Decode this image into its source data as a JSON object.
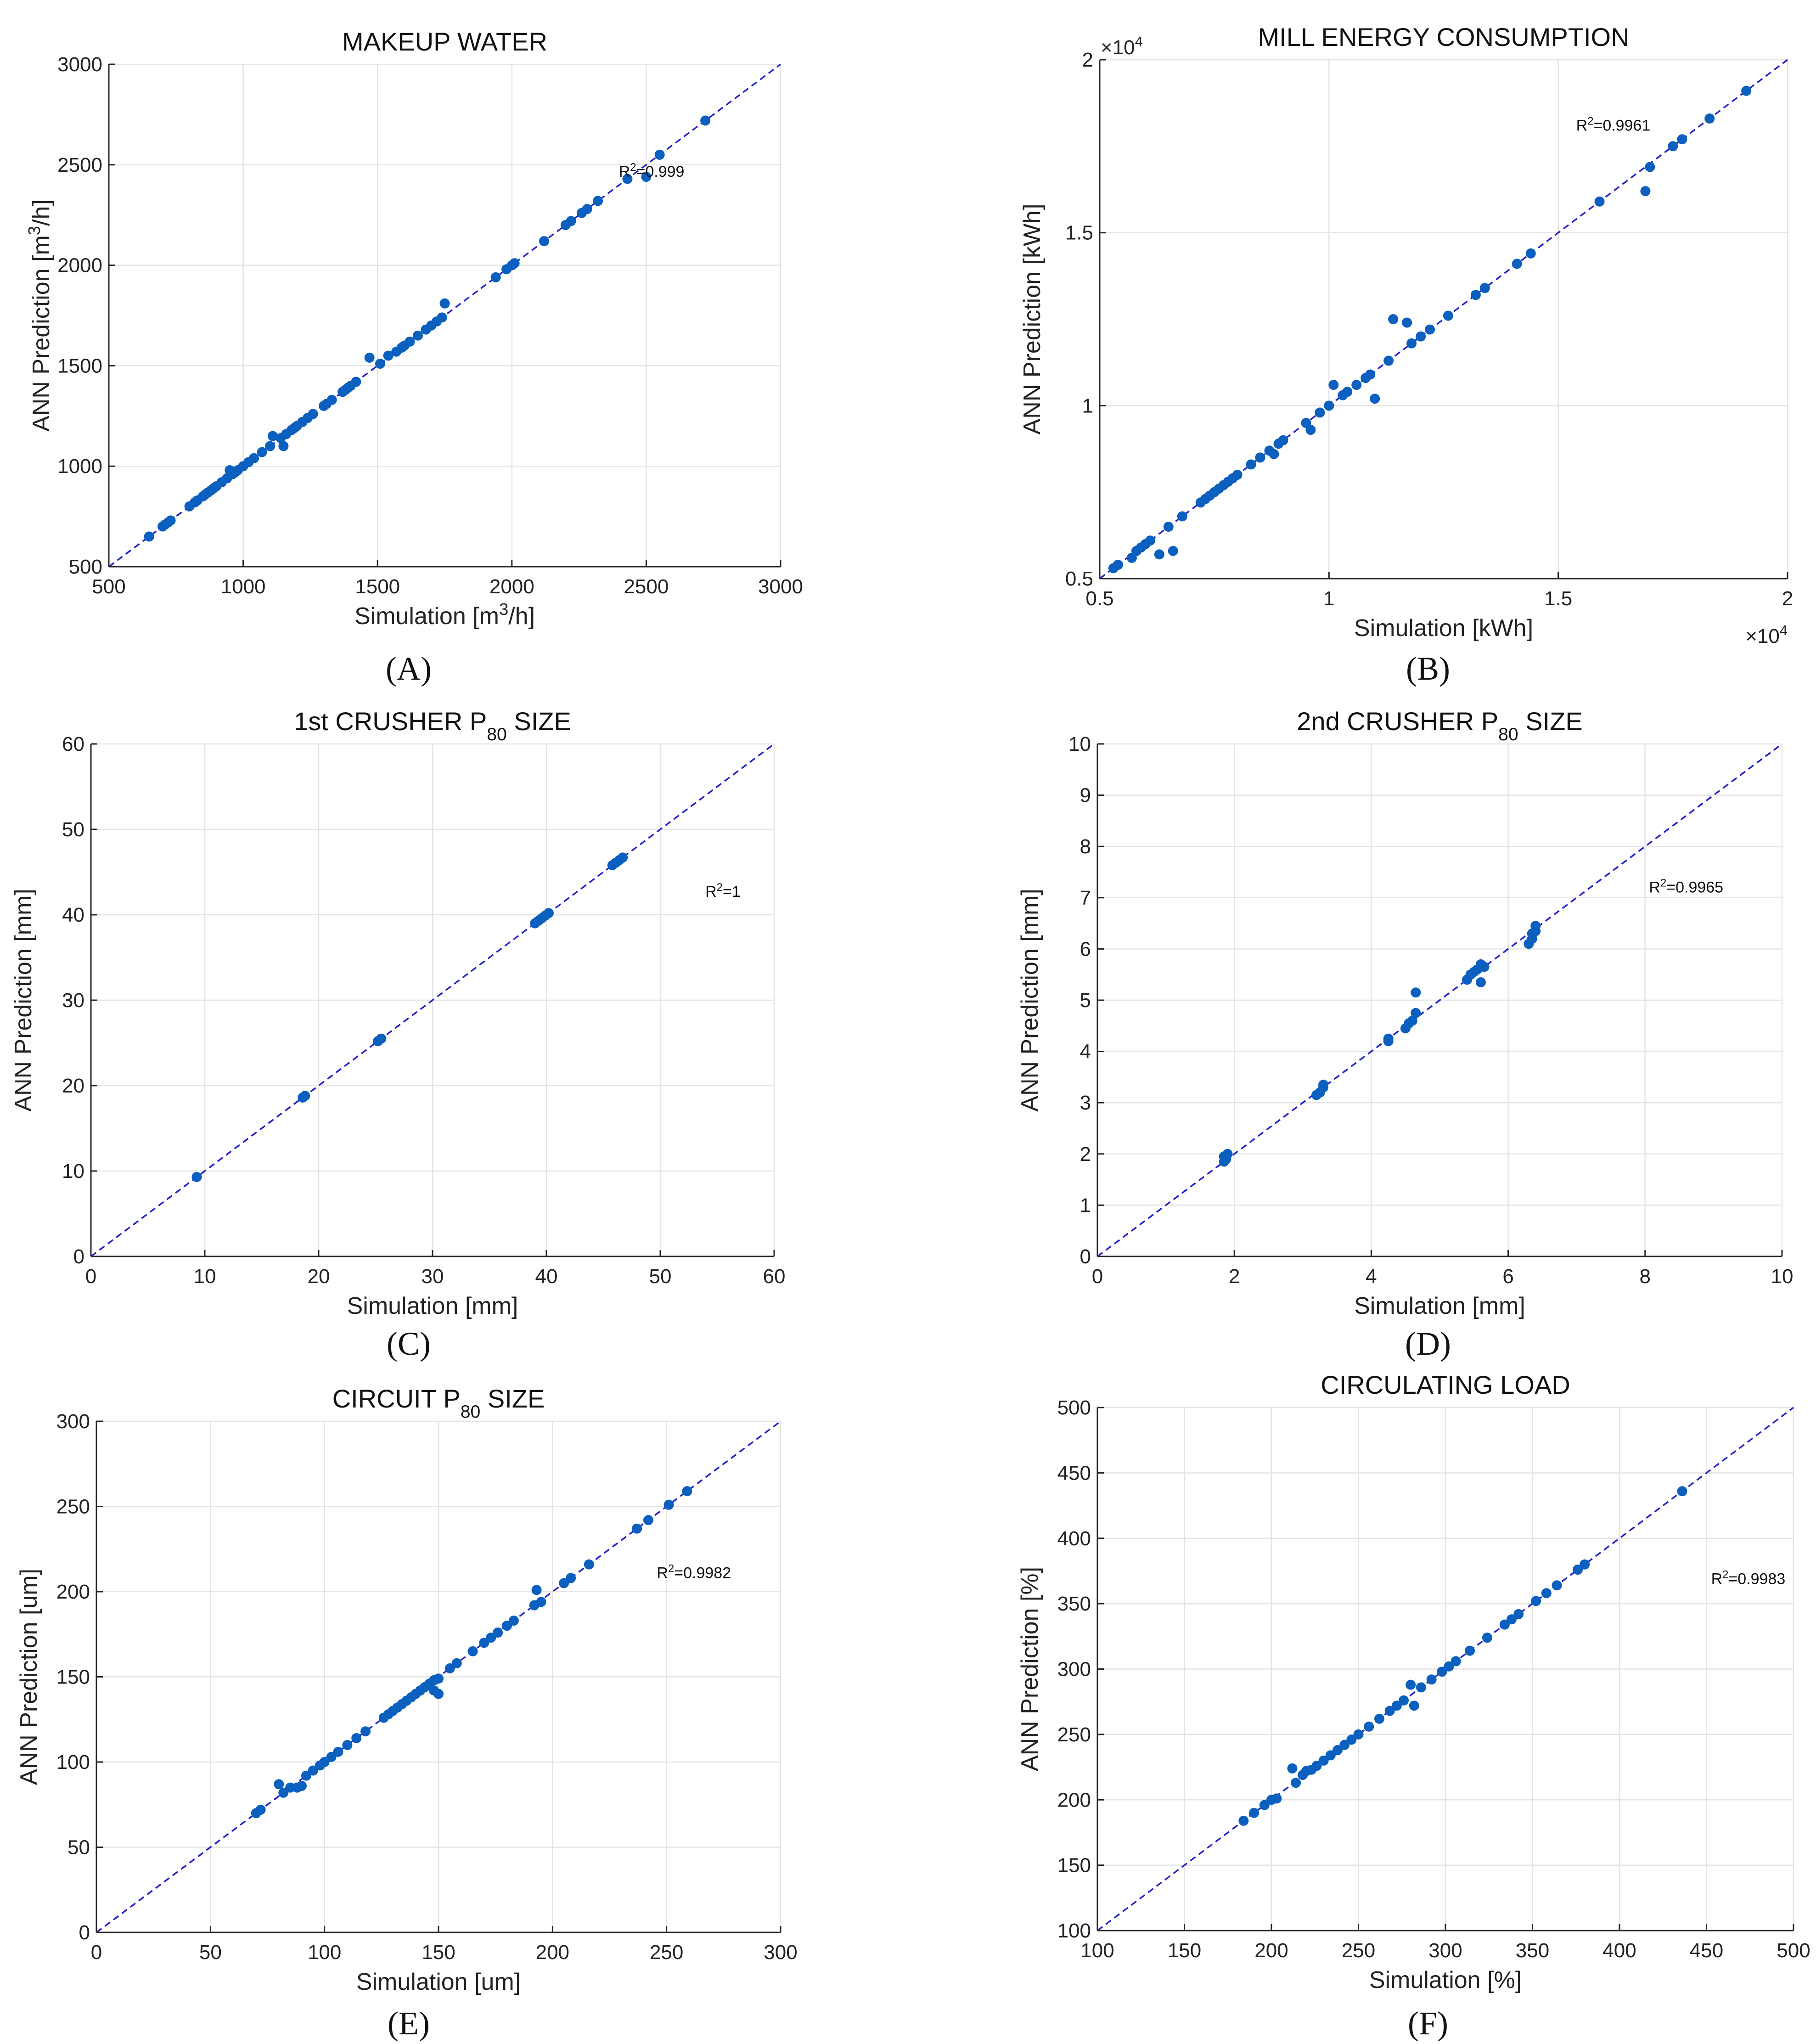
{
  "colors": {
    "marker": "#0a5fbf",
    "diagonal": "#2222cc",
    "grid": "#e4e4e4",
    "axis": "#262626"
  },
  "chart_data": [
    {
      "panel_label": "(A)",
      "type": "scatter",
      "title_parts": [
        {
          "text": "MAKEUP WATER"
        }
      ],
      "xlabel_parts": [
        {
          "text": "Simulation [m"
        },
        {
          "text": "3",
          "sup": true
        },
        {
          "text": "/h]"
        }
      ],
      "ylabel_parts": [
        {
          "text": "ANN Prediction [m"
        },
        {
          "text": "3",
          "sup": true
        },
        {
          "text": "/h]"
        }
      ],
      "r2_parts": [
        {
          "text": "R"
        },
        {
          "text": "2",
          "sup": true
        },
        {
          "text": "=0.999"
        }
      ],
      "r2_pos": [
        2520,
        2440
      ],
      "xlim": [
        500,
        3000
      ],
      "ylim": [
        500,
        3000
      ],
      "xticks": [
        500,
        1000,
        1500,
        2000,
        2500,
        3000
      ],
      "yticks": [
        500,
        1000,
        1500,
        2000,
        2500,
        3000
      ],
      "x_tick_labels": [
        "500",
        "1000",
        "1500",
        "2000",
        "2500",
        "3000"
      ],
      "y_tick_labels": [
        "500",
        "1000",
        "1500",
        "2000",
        "2500",
        "3000"
      ],
      "grid": true,
      "x": [
        650,
        700,
        710,
        720,
        730,
        800,
        820,
        830,
        850,
        860,
        870,
        880,
        890,
        900,
        920,
        940,
        950,
        960,
        970,
        980,
        1000,
        1020,
        1040,
        1070,
        1100,
        1110,
        1140,
        1150,
        1160,
        1180,
        1190,
        1200,
        1220,
        1240,
        1260,
        1300,
        1310,
        1330,
        1370,
        1380,
        1390,
        1400,
        1420,
        1470,
        1510,
        1540,
        1570,
        1590,
        1600,
        1620,
        1650,
        1680,
        1700,
        1720,
        1740,
        1750,
        1940,
        1980,
        2000,
        2010,
        2120,
        2200,
        2220,
        2260,
        2280,
        2320,
        2430,
        2500,
        2550,
        2720
      ],
      "y": [
        650,
        700,
        710,
        720,
        730,
        800,
        820,
        830,
        850,
        860,
        870,
        880,
        890,
        900,
        920,
        940,
        980,
        960,
        970,
        980,
        1000,
        1020,
        1040,
        1070,
        1100,
        1150,
        1140,
        1100,
        1160,
        1180,
        1190,
        1200,
        1220,
        1240,
        1260,
        1300,
        1310,
        1330,
        1370,
        1380,
        1390,
        1400,
        1420,
        1540,
        1510,
        1550,
        1570,
        1590,
        1600,
        1620,
        1650,
        1680,
        1700,
        1720,
        1740,
        1810,
        1940,
        1980,
        2000,
        2010,
        2120,
        2200,
        2220,
        2260,
        2280,
        2320,
        2430,
        2440,
        2550,
        2720
      ]
    },
    {
      "panel_label": "(B)",
      "type": "scatter",
      "title_parts": [
        {
          "text": "MILL ENERGY CONSUMPTION"
        }
      ],
      "xlabel_parts": [
        {
          "text": "Simulation [kWh]"
        }
      ],
      "ylabel_parts": [
        {
          "text": "ANN Prediction [kWh]"
        }
      ],
      "r2_parts": [
        {
          "text": "R"
        },
        {
          "text": "2",
          "sup": true
        },
        {
          "text": "=0.9961"
        }
      ],
      "r2_pos": [
        16200,
        17950
      ],
      "x_exponent_parts": [
        {
          "text": "×10"
        },
        {
          "text": "4",
          "sup": true
        }
      ],
      "y_exponent_parts": [
        {
          "text": "×10"
        },
        {
          "text": "4",
          "sup": true
        }
      ],
      "xlim": [
        5000,
        20000
      ],
      "ylim": [
        5000,
        20000
      ],
      "xticks": [
        5000,
        10000,
        15000,
        20000
      ],
      "yticks": [
        5000,
        10000,
        15000,
        20000
      ],
      "x_tick_labels": [
        "0.5",
        "1",
        "1.5",
        "2"
      ],
      "y_tick_labels": [
        "0.5",
        "1",
        "1.5",
        "2"
      ],
      "grid": true,
      "x": [
        5300,
        5400,
        5700,
        5800,
        5900,
        6000,
        6100,
        6300,
        6500,
        6600,
        6800,
        7200,
        7300,
        7400,
        7500,
        7600,
        7700,
        7800,
        7900,
        8000,
        8300,
        8500,
        8700,
        8800,
        8900,
        9000,
        9500,
        9600,
        9800,
        10000,
        10100,
        10300,
        10400,
        10600,
        10800,
        10900,
        11000,
        11300,
        11400,
        11700,
        11800,
        12000,
        12200,
        12600,
        13200,
        13400,
        14100,
        14400,
        15900,
        16900,
        17000,
        17500,
        17700,
        18300,
        19100
      ],
      "y": [
        5300,
        5400,
        5600,
        5800,
        5900,
        6000,
        6100,
        5700,
        6500,
        5800,
        6800,
        7200,
        7300,
        7400,
        7500,
        7600,
        7700,
        7800,
        7900,
        8000,
        8300,
        8500,
        8700,
        8600,
        8900,
        9000,
        9500,
        9300,
        9800,
        10000,
        10600,
        10300,
        10400,
        10600,
        10800,
        10900,
        10200,
        11300,
        12500,
        12400,
        11800,
        12000,
        12200,
        12600,
        13200,
        13400,
        14100,
        14400,
        15900,
        16200,
        16900,
        17500,
        17700,
        18300,
        19100
      ]
    },
    {
      "panel_label": "(C)",
      "type": "scatter",
      "title_parts": [
        {
          "text": "1st CRUSHER P"
        },
        {
          "text": "80",
          "sub": true
        },
        {
          "text": " SIZE"
        }
      ],
      "xlabel_parts": [
        {
          "text": "Simulation [mm]"
        }
      ],
      "ylabel_parts": [
        {
          "text": "ANN Prediction [mm]"
        }
      ],
      "r2_parts": [
        {
          "text": "R"
        },
        {
          "text": "2",
          "sup": true
        },
        {
          "text": "=1"
        }
      ],
      "r2_pos": [
        55.5,
        42.1
      ],
      "xlim": [
        0,
        60
      ],
      "ylim": [
        0,
        60
      ],
      "xticks": [
        0,
        10,
        20,
        30,
        40,
        50,
        60
      ],
      "yticks": [
        0,
        10,
        20,
        30,
        40,
        50,
        60
      ],
      "x_tick_labels": [
        "0",
        "10",
        "20",
        "30",
        "40",
        "50",
        "60"
      ],
      "y_tick_labels": [
        "0",
        "10",
        "20",
        "30",
        "40",
        "50",
        "60"
      ],
      "grid": true,
      "x": [
        9.3,
        18.6,
        18.8,
        25.2,
        25.5,
        39.0,
        39.3,
        39.6,
        39.9,
        40.2,
        45.8,
        46.1,
        46.4,
        46.7
      ],
      "y": [
        9.3,
        18.6,
        18.8,
        25.2,
        25.5,
        39.0,
        39.3,
        39.6,
        39.9,
        40.2,
        45.8,
        46.1,
        46.4,
        46.7
      ]
    },
    {
      "panel_label": "(D)",
      "type": "scatter",
      "title_parts": [
        {
          "text": "2nd CRUSHER P"
        },
        {
          "text": "80",
          "sub": true
        },
        {
          "text": " SIZE"
        }
      ],
      "xlabel_parts": [
        {
          "text": "Simulation [mm]"
        }
      ],
      "ylabel_parts": [
        {
          "text": "ANN Prediction [mm]"
        }
      ],
      "r2_parts": [
        {
          "text": "R"
        },
        {
          "text": "2",
          "sup": true
        },
        {
          "text": "=0.9965"
        }
      ],
      "r2_pos": [
        8.6,
        7.1
      ],
      "xlim": [
        0,
        10
      ],
      "ylim": [
        0,
        10
      ],
      "xticks": [
        0,
        2,
        4,
        6,
        8,
        10
      ],
      "yticks": [
        0,
        1,
        2,
        3,
        4,
        5,
        6,
        7,
        8,
        9,
        10
      ],
      "x_tick_labels": [
        "0",
        "2",
        "4",
        "6",
        "8",
        "10"
      ],
      "y_tick_labels": [
        "0",
        "1",
        "2",
        "3",
        "4",
        "5",
        "6",
        "7",
        "8",
        "9",
        "10"
      ],
      "grid": true,
      "x": [
        1.85,
        1.85,
        1.88,
        1.9,
        3.2,
        3.25,
        3.3,
        3.3,
        4.25,
        4.25,
        4.5,
        4.55,
        4.6,
        4.65,
        4.65,
        5.4,
        5.45,
        5.5,
        5.55,
        5.6,
        5.65,
        5.6,
        6.3,
        6.35,
        6.35,
        6.4,
        6.4
      ],
      "y": [
        1.85,
        1.95,
        1.9,
        2.0,
        3.15,
        3.2,
        3.3,
        3.35,
        4.2,
        4.25,
        4.45,
        4.55,
        4.6,
        4.75,
        5.15,
        5.4,
        5.5,
        5.55,
        5.6,
        5.7,
        5.65,
        5.35,
        6.1,
        6.2,
        6.3,
        6.45,
        6.35
      ]
    },
    {
      "panel_label": "(E)",
      "type": "scatter",
      "title_parts": [
        {
          "text": "CIRCUIT P"
        },
        {
          "text": "80",
          "sub": true
        },
        {
          "text": " SIZE"
        }
      ],
      "xlabel_parts": [
        {
          "text": "Simulation [um]"
        }
      ],
      "ylabel_parts": [
        {
          "text": "ANN Prediction [um]"
        }
      ],
      "r2_parts": [
        {
          "text": "R"
        },
        {
          "text": "2",
          "sup": true
        },
        {
          "text": "=0.9982"
        }
      ],
      "r2_pos": [
        262,
        208
      ],
      "xlim": [
        0,
        300
      ],
      "ylim": [
        0,
        300
      ],
      "xticks": [
        0,
        50,
        100,
        150,
        200,
        250,
        300
      ],
      "yticks": [
        0,
        50,
        100,
        150,
        200,
        250,
        300
      ],
      "x_tick_labels": [
        "0",
        "50",
        "100",
        "150",
        "200",
        "250",
        "300"
      ],
      "y_tick_labels": [
        "0",
        "50",
        "100",
        "150",
        "200",
        "250",
        "300"
      ],
      "grid": true,
      "x": [
        70,
        72,
        80,
        82,
        85,
        88,
        90,
        92,
        95,
        98,
        100,
        103,
        106,
        110,
        114,
        118,
        126,
        128,
        130,
        132,
        134,
        136,
        138,
        140,
        142,
        144,
        146,
        148,
        148,
        150,
        150,
        155,
        158,
        165,
        170,
        173,
        176,
        180,
        183,
        192,
        193,
        195,
        205,
        208,
        216,
        237,
        242,
        251,
        259
      ],
      "y": [
        70,
        72,
        87,
        82,
        85,
        85,
        86,
        92,
        95,
        98,
        100,
        103,
        106,
        110,
        114,
        118,
        126,
        128,
        130,
        132,
        134,
        136,
        138,
        140,
        142,
        144,
        146,
        148,
        142,
        149,
        140,
        155,
        158,
        165,
        170,
        173,
        176,
        180,
        183,
        192,
        201,
        194,
        205,
        208,
        216,
        237,
        242,
        251,
        259
      ]
    },
    {
      "panel_label": "(F)",
      "type": "scatter",
      "title_parts": [
        {
          "text": "CIRCULATING LOAD"
        }
      ],
      "xlabel_parts": [
        {
          "text": "Simulation [%]"
        }
      ],
      "ylabel_parts": [
        {
          "text": "ANN Prediction [%]"
        }
      ],
      "r2_parts": [
        {
          "text": "R"
        },
        {
          "text": "2",
          "sup": true
        },
        {
          "text": "=0.9983"
        }
      ],
      "r2_pos": [
        474,
        365
      ],
      "xlim": [
        100,
        500
      ],
      "ylim": [
        100,
        500
      ],
      "xticks": [
        100,
        150,
        200,
        250,
        300,
        350,
        400,
        450,
        500
      ],
      "yticks": [
        100,
        150,
        200,
        250,
        300,
        350,
        400,
        450,
        500
      ],
      "x_tick_labels": [
        "100",
        "150",
        "200",
        "250",
        "300",
        "350",
        "400",
        "450",
        "500"
      ],
      "y_tick_labels": [
        "100",
        "150",
        "200",
        "250",
        "300",
        "350",
        "400",
        "450",
        "500"
      ],
      "grid": true,
      "x": [
        184,
        190,
        196,
        200,
        203,
        212,
        214,
        218,
        220,
        223,
        226,
        230,
        234,
        238,
        242,
        246,
        250,
        256,
        262,
        268,
        272,
        276,
        280,
        282,
        286,
        292,
        298,
        302,
        306,
        314,
        324,
        334,
        338,
        342,
        352,
        358,
        364,
        376,
        380,
        436
      ],
      "y": [
        184,
        190,
        196,
        200,
        201,
        224,
        213,
        219,
        222,
        223,
        226,
        230,
        234,
        238,
        242,
        246,
        250,
        256,
        262,
        268,
        272,
        276,
        288,
        272,
        286,
        292,
        298,
        302,
        306,
        314,
        324,
        334,
        338,
        342,
        352,
        358,
        364,
        376,
        380,
        436
      ]
    }
  ]
}
